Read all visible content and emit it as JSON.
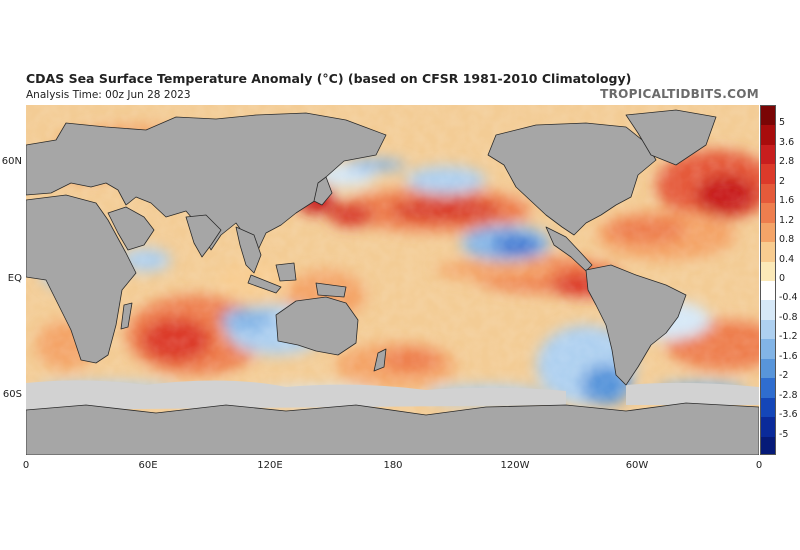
{
  "header": {
    "title": "CDAS Sea Surface Temperature Anomaly (°C) (based on CFSR 1981-2010 Climatology)",
    "analysis_time": "Analysis Time: 00z Jun 28 2023",
    "credit": "TROPICALTIDBITS.COM"
  },
  "map": {
    "lat_labels": [
      {
        "text": "60N",
        "lat": 60
      },
      {
        "text": "EQ",
        "lat": 0
      },
      {
        "text": "60S",
        "lat": -60
      }
    ],
    "lon_labels": [
      {
        "text": "0",
        "lon": 0
      },
      {
        "text": "60E",
        "lon": 60
      },
      {
        "text": "120E",
        "lon": 120
      },
      {
        "text": "180",
        "lon": 180
      },
      {
        "text": "120W",
        "lon": 240
      },
      {
        "text": "60W",
        "lon": 300
      },
      {
        "text": "0",
        "lon": 360
      }
    ],
    "colors": {
      "land": "#a6a6a6",
      "ice": "#d2d2d2",
      "ocean_base": "#f2c98e",
      "border": "#2a2a2a"
    }
  },
  "colorbar": {
    "labels": [
      "5",
      "3.6",
      "2.8",
      "2",
      "1.6",
      "1.2",
      "0.8",
      "0.4",
      "0",
      "-0.4",
      "-0.8",
      "-1.2",
      "-1.6",
      "-2",
      "-2.8",
      "-3.6",
      "-5"
    ],
    "colors": [
      "#7a0505",
      "#a80c0c",
      "#c81e1e",
      "#dc3a2a",
      "#e55a3a",
      "#ee7e4e",
      "#f4a468",
      "#f8cc90",
      "#fbe9b8",
      "#ffffff",
      "#d6e8f7",
      "#aed0f0",
      "#82b4e6",
      "#5895da",
      "#2f6dcf",
      "#1446b8",
      "#0a2a9a",
      "#061a78"
    ]
  }
}
